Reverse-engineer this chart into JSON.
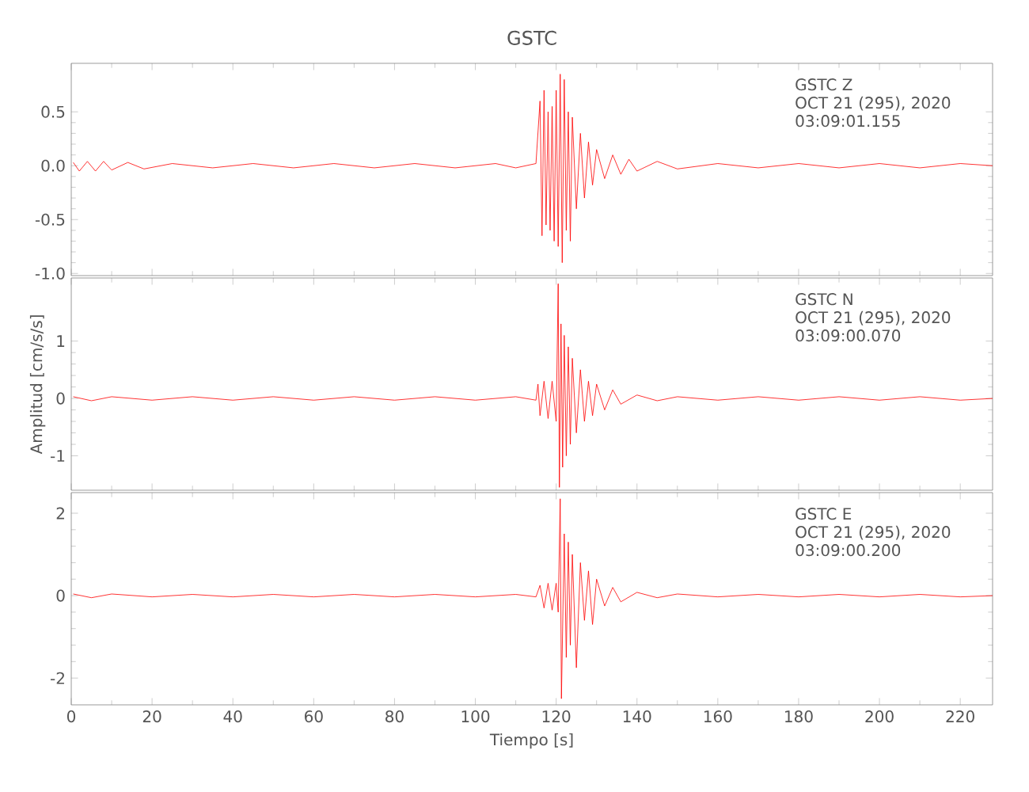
{
  "chart_data": [
    {
      "type": "line",
      "title": "GSTC",
      "tick_labels": "y",
      "x": [
        0.5,
        2,
        4,
        6,
        8,
        10,
        14,
        18,
        25,
        35,
        45,
        55,
        65,
        75,
        85,
        95,
        105,
        110,
        115,
        116,
        116.5,
        117,
        117.5,
        118,
        118.5,
        119,
        119.5,
        120,
        120.5,
        121,
        121.5,
        122,
        122.5,
        123,
        123.5,
        124,
        125,
        126,
        127,
        128,
        129,
        130,
        132,
        134,
        136,
        138,
        140,
        145,
        150,
        160,
        170,
        180,
        190,
        200,
        210,
        220,
        228
      ],
      "series": [
        {
          "color": "#ff0000",
          "values": [
            0.03,
            -0.05,
            0.04,
            -0.05,
            0.04,
            -0.04,
            0.03,
            -0.03,
            0.02,
            -0.02,
            0.02,
            -0.02,
            0.02,
            -0.02,
            0.02,
            -0.02,
            0.02,
            -0.02,
            0.02,
            0.6,
            -0.65,
            0.7,
            -0.55,
            0.5,
            -0.6,
            0.55,
            -0.7,
            0.7,
            -0.75,
            0.85,
            -0.9,
            0.8,
            -0.6,
            0.5,
            -0.7,
            0.45,
            -0.4,
            0.3,
            -0.3,
            0.22,
            -0.18,
            0.15,
            -0.12,
            0.1,
            -0.08,
            0.06,
            -0.05,
            0.04,
            -0.03,
            0.02,
            -0.02,
            0.02,
            -0.02,
            0.02,
            -0.02,
            0.02,
            0
          ]
        }
      ],
      "xlim": [
        0,
        228
      ],
      "xticks": [
        0,
        20,
        40,
        60,
        80,
        100,
        120,
        140,
        160,
        180,
        200,
        220
      ],
      "ylim": [
        -1.02,
        0.95
      ],
      "yticks": [
        {
          "value": -1,
          "label": "-1.0"
        },
        {
          "value": -0.5,
          "label": "-0.5"
        },
        {
          "value": 0,
          "label": "0.0"
        },
        {
          "value": 0.5,
          "label": "0.5"
        }
      ],
      "annotations": [
        "GSTC   Z",
        "OCT 21 (295), 2020",
        "03:09:01.155"
      ],
      "marker": "none",
      "line_style": "solid",
      "grid": false
    },
    {
      "type": "line",
      "ylabel": "Amplitud [cm/s/s]",
      "tick_labels": "y",
      "x": [
        0.5,
        5,
        10,
        20,
        30,
        40,
        50,
        60,
        70,
        80,
        90,
        100,
        110,
        115,
        115.5,
        116,
        117,
        118,
        119,
        120,
        120.5,
        120.8,
        121.2,
        121.6,
        122,
        122.5,
        123,
        123.5,
        124,
        125,
        126,
        127,
        128,
        129,
        130,
        132,
        134,
        136,
        140,
        145,
        150,
        160,
        170,
        180,
        190,
        200,
        210,
        220,
        228
      ],
      "series": [
        {
          "color": "#ff0000",
          "values": [
            0.03,
            -0.04,
            0.03,
            -0.03,
            0.03,
            -0.03,
            0.03,
            -0.03,
            0.03,
            -0.03,
            0.03,
            -0.03,
            0.03,
            -0.03,
            0.25,
            -0.3,
            0.3,
            -0.35,
            0.3,
            -0.4,
            2.0,
            -1.55,
            1.3,
            -1.2,
            1.1,
            -1.0,
            0.9,
            -0.8,
            0.7,
            -0.6,
            0.5,
            -0.4,
            0.3,
            -0.3,
            0.25,
            -0.2,
            0.15,
            -0.1,
            0.06,
            -0.04,
            0.03,
            -0.03,
            0.03,
            -0.03,
            0.03,
            -0.03,
            0.03,
            -0.03,
            0
          ]
        }
      ],
      "xlim": [
        0,
        228
      ],
      "xticks": [
        0,
        20,
        40,
        60,
        80,
        100,
        120,
        140,
        160,
        180,
        200,
        220
      ],
      "ylim": [
        -1.6,
        2.1
      ],
      "yticks": [
        -1,
        0,
        1
      ],
      "annotations": [
        "GSTC   N",
        "OCT 21 (295), 2020",
        "03:09:00.070"
      ],
      "marker": "none",
      "line_style": "solid",
      "grid": false
    },
    {
      "type": "line",
      "xlabel": "Tiempo [s]",
      "x": [
        0.5,
        5,
        10,
        20,
        30,
        40,
        50,
        60,
        70,
        80,
        90,
        100,
        110,
        115,
        116,
        117,
        118,
        119,
        120,
        120.5,
        121,
        121.3,
        122,
        122.5,
        123,
        123.5,
        124,
        125,
        126,
        127,
        128,
        129,
        130,
        132,
        134,
        136,
        140,
        145,
        150,
        160,
        170,
        180,
        190,
        200,
        210,
        220,
        228
      ],
      "series": [
        {
          "color": "#ff0000",
          "values": [
            0.04,
            -0.05,
            0.04,
            -0.03,
            0.03,
            -0.03,
            0.03,
            -0.03,
            0.03,
            -0.03,
            0.03,
            -0.03,
            0.03,
            -0.03,
            0.25,
            -0.3,
            0.3,
            -0.35,
            0.3,
            -0.4,
            2.35,
            -2.5,
            1.5,
            -1.5,
            1.3,
            -1.2,
            1.0,
            -1.75,
            0.8,
            -0.6,
            0.6,
            -0.7,
            0.4,
            -0.25,
            0.2,
            -0.15,
            0.08,
            -0.05,
            0.04,
            -0.03,
            0.03,
            -0.03,
            0.03,
            -0.03,
            0.03,
            -0.03,
            0
          ]
        }
      ],
      "xlim": [
        0,
        228
      ],
      "xticks": [
        0,
        20,
        40,
        60,
        80,
        100,
        120,
        140,
        160,
        180,
        200,
        220
      ],
      "ylim": [
        -2.65,
        2.5
      ],
      "yticks": [
        -2,
        0,
        2
      ],
      "annotations": [
        "GSTC   E",
        "OCT 21 (295), 2020",
        "03:09:00.200"
      ],
      "marker": "none",
      "line_style": "solid",
      "grid": false
    }
  ]
}
